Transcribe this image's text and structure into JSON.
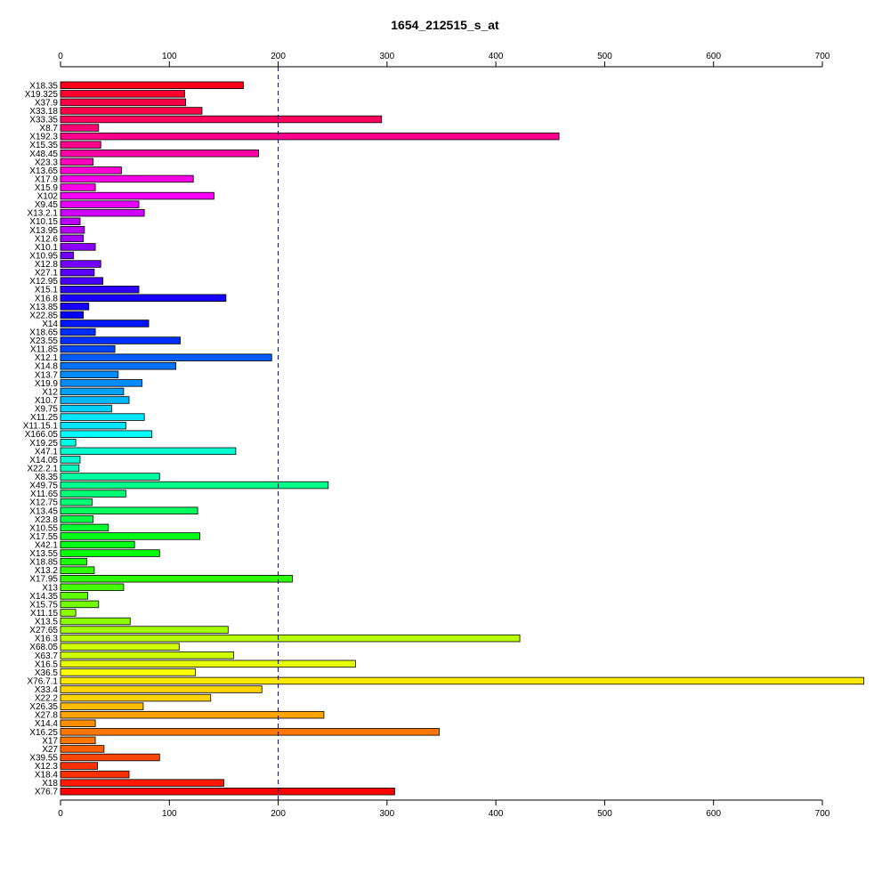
{
  "chart_data": {
    "type": "bar",
    "orientation": "horizontal",
    "title": "1654_212515_s_at",
    "xlabel": "",
    "ylabel": "",
    "xlim": [
      0,
      700
    ],
    "x_ticks": [
      0,
      100,
      200,
      300,
      400,
      500,
      600,
      700
    ],
    "axes": "top-and-bottom",
    "grid": false,
    "legend": "none",
    "reference_line": {
      "x": 200,
      "style": "dashed",
      "color": "#00008B"
    },
    "color_scheme": "rainbow",
    "categories": [
      "X18.35",
      "X19.325",
      "X37.9",
      "X33.18",
      "X33.35",
      "X8.7",
      "X192.3",
      "X15.35",
      "X48.45",
      "X23.3",
      "X13.65",
      "X17.9",
      "X15.9",
      "X102",
      "X9.45",
      "X13.2.1",
      "X10.15",
      "X13.95",
      "X12.6",
      "X10.1",
      "X10.95",
      "X12.8",
      "X27.1",
      "X12.95",
      "X15.1",
      "X16.8",
      "X13.85",
      "X22.85",
      "X14",
      "X18.65",
      "X23.55",
      "X11.85",
      "X12.1",
      "X14.8",
      "X13.7",
      "X19.9",
      "X12",
      "X10.7",
      "X9.75",
      "X11.25",
      "X11.15.1",
      "X166.05",
      "X19.25",
      "X47.1",
      "X14.05",
      "X22.2.1",
      "X8.35",
      "X49.75",
      "X11.65",
      "X12.75",
      "X13.45",
      "X23.8",
      "X10.55",
      "X17.55",
      "X42.1",
      "X13.55",
      "X18.85",
      "X13.2",
      "X17.95",
      "X13",
      "X14.35",
      "X15.75",
      "X11.15",
      "X13.5",
      "X27.65",
      "X16.3",
      "X68.05",
      "X63.7",
      "X16.5",
      "X36.5",
      "X76.7.1",
      "X33.4",
      "X22.2",
      "X26.35",
      "X27.8",
      "X14.4",
      "X16.25",
      "X17",
      "X27",
      "X39.55",
      "X12.3",
      "X18.4",
      "X18",
      "X76.7"
    ],
    "values": [
      168,
      114,
      115,
      130,
      295,
      35,
      458,
      37,
      182,
      30,
      56,
      122,
      32,
      141,
      72,
      77,
      18,
      22,
      21,
      32,
      12,
      37,
      31,
      39,
      72,
      152,
      26,
      21,
      81,
      32,
      110,
      50,
      194,
      106,
      53,
      75,
      58,
      63,
      47,
      77,
      60,
      84,
      14,
      161,
      18,
      17,
      91,
      246,
      60,
      29,
      126,
      30,
      44,
      128,
      68,
      91,
      24,
      31,
      213,
      58,
      25,
      35,
      14,
      64,
      154,
      422,
      109,
      159,
      271,
      124,
      738,
      185,
      138,
      76,
      242,
      32,
      348,
      32,
      40,
      91,
      34,
      63,
      150,
      307
    ],
    "colors": [
      "#ff0019",
      "#ff0030",
      "#ff0047",
      "#ff005e",
      "#ff0076",
      "#ff008d",
      "#ff00a4",
      "#ff00bb",
      "#ff00d2",
      "#ff00e9",
      "#fe00ff",
      "#e700ff",
      "#d000ff",
      "#b900ff",
      "#a200ff",
      "#8b00ff",
      "#7400ff",
      "#5c00ff",
      "#4500ff",
      "#2e00ff",
      "#1700ff",
      "#0000ff",
      "#0017ff",
      "#002eff",
      "#0045ff",
      "#005cff",
      "#0074ff",
      "#008bff",
      "#00a2ff",
      "#00b9ff",
      "#00d0ff",
      "#00e7ff",
      "#00fffe",
      "#00ffe7",
      "#00ffd0",
      "#00ffb9",
      "#00ffa2",
      "#00ff8b",
      "#00ff74",
      "#00ff5c",
      "#00ff45",
      "#00ff2e",
      "#00ff17",
      "#00ff00",
      "#17ff00",
      "#2eff00",
      "#45ff00",
      "#5cff00",
      "#74ff00",
      "#8bff00",
      "#a2ff00",
      "#b9ff00",
      "#d0ff00",
      "#e7ff00",
      "#fefe00",
      "#ffe900",
      "#ffd200",
      "#ffbb00",
      "#ffa400",
      "#ff8d00",
      "#ff7600",
      "#ff5e00",
      "#ff4700",
      "#ff3000",
      "#ff1900",
      "#ff0000"
    ]
  }
}
